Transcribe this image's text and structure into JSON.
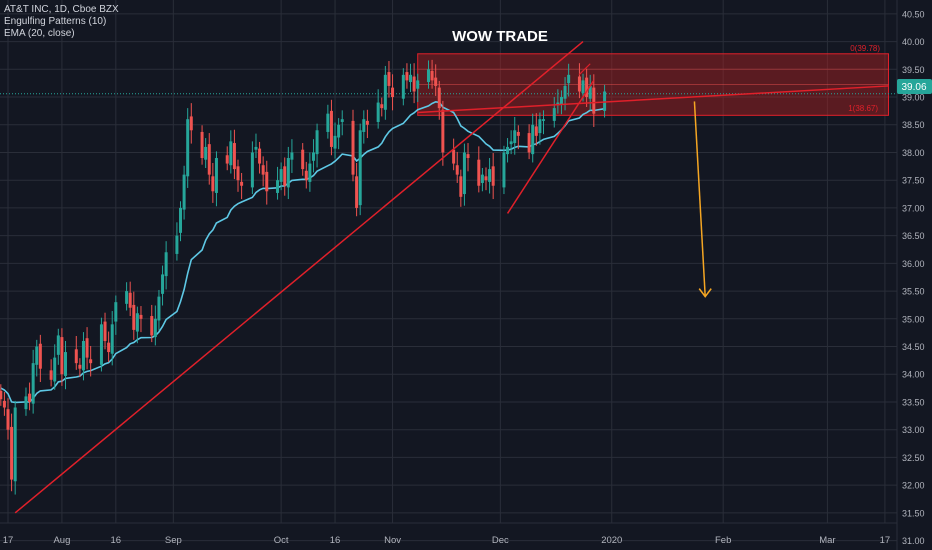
{
  "legend": {
    "symbol": "AT&T INC, 1D, Cboe BZX",
    "indicator1": "Engulfing Patterns (10)",
    "indicator2": "EMA (20, close)"
  },
  "annotation": {
    "title": "WOW TRADE",
    "fib_top": "0(39.78)",
    "fib_bottom": "1(38.67)"
  },
  "last_price_label": "39.06",
  "colors": {
    "background": "#131722",
    "grid": "#2a2e39",
    "up": "#26a69a",
    "down": "#ef5350",
    "ema": "#5ec8e5",
    "trendline": "#e0202a",
    "zone_fill": "rgba(178,34,34,0.45)",
    "arrow": "#f5a623",
    "axis_text": "#b2b5be",
    "price_badge": "#26a69a"
  },
  "chart_data": {
    "type": "candlestick",
    "x_ticks": [
      "17",
      "Aug",
      "16",
      "Sep",
      "Oct",
      "16",
      "Nov",
      "Dec",
      "2020",
      "Feb",
      "Mar",
      "17"
    ],
    "y_ticks": [
      "31.00",
      "31.50",
      "32.00",
      "32.50",
      "33.00",
      "33.50",
      "34.00",
      "34.50",
      "35.00",
      "35.50",
      "36.00",
      "36.50",
      "37.00",
      "37.50",
      "38.00",
      "38.50",
      "39.00",
      "39.50",
      "40.00",
      "40.50"
    ],
    "ylim": [
      30.83,
      40.75
    ],
    "start": "2019-07-15",
    "close": [
      33.55,
      33.4,
      33.0,
      32.1,
      33.4,
      33.6,
      33.5,
      34.2,
      34.5,
      34.1,
      33.9,
      34.3,
      34.7,
      34.0,
      34.4,
      34.2,
      34.1,
      34.6,
      34.3,
      34.2,
      34.9,
      34.6,
      34.4,
      34.9,
      35.3,
      35.5,
      35.2,
      34.8,
      35.1,
      35.0,
      34.7,
      35.0,
      35.4,
      35.8,
      36.2,
      36.5,
      37.0,
      37.6,
      38.6,
      38.4,
      37.9,
      38.1,
      37.6,
      37.3,
      37.9,
      37.8,
      38.2,
      37.7,
      37.5,
      37.4,
      38.0,
      38.1,
      37.8,
      37.6,
      37.3,
      37.5,
      37.7,
      37.4,
      37.9,
      38.0,
      37.7,
      37.5,
      37.8,
      38.0,
      38.4,
      38.7,
      38.1,
      38.3,
      38.5,
      38.6,
      37.6,
      37.0,
      38.4,
      38.6,
      38.5,
      38.9,
      38.8,
      39.4,
      39.2,
      39.0,
      39.4,
      39.3,
      39.4,
      39.1,
      39.3,
      39.5,
      39.3,
      39.2,
      38.8,
      38.0,
      37.8,
      37.6,
      37.2,
      38.0,
      37.9,
      37.4,
      37.6,
      37.5,
      37.7,
      37.4,
      38.0,
      38.1,
      38.2,
      38.4,
      38.3,
      38.0,
      38.5,
      38.3,
      38.6,
      38.6,
      38.8,
      38.9,
      39.0,
      39.2,
      39.4,
      39.1,
      39.3,
      39.0,
      39.2,
      38.7,
      39.1
    ],
    "ema_label": "EMA (20, close)",
    "annotations": [
      {
        "type": "trendline",
        "from": [
          "2019-07-19",
          31.5
        ],
        "to": [
          "2019-12-24",
          40.0
        ]
      },
      {
        "type": "trendline",
        "from": [
          "2019-12-03",
          36.9
        ],
        "to": [
          "2019-12-27",
          39.3
        ]
      },
      {
        "type": "trendline",
        "from": [
          "2019-11-08",
          38.72
        ],
        "to": [
          "2020-03-18",
          39.2
        ]
      },
      {
        "type": "zone",
        "from": "2019-11-08",
        "to": "2020-03-18",
        "top": 39.78,
        "bottom": 38.67
      },
      {
        "type": "arrow",
        "from": [
          "2020-01-24",
          38.92
        ],
        "to": [
          "2020-01-27",
          35.4
        ]
      }
    ]
  }
}
